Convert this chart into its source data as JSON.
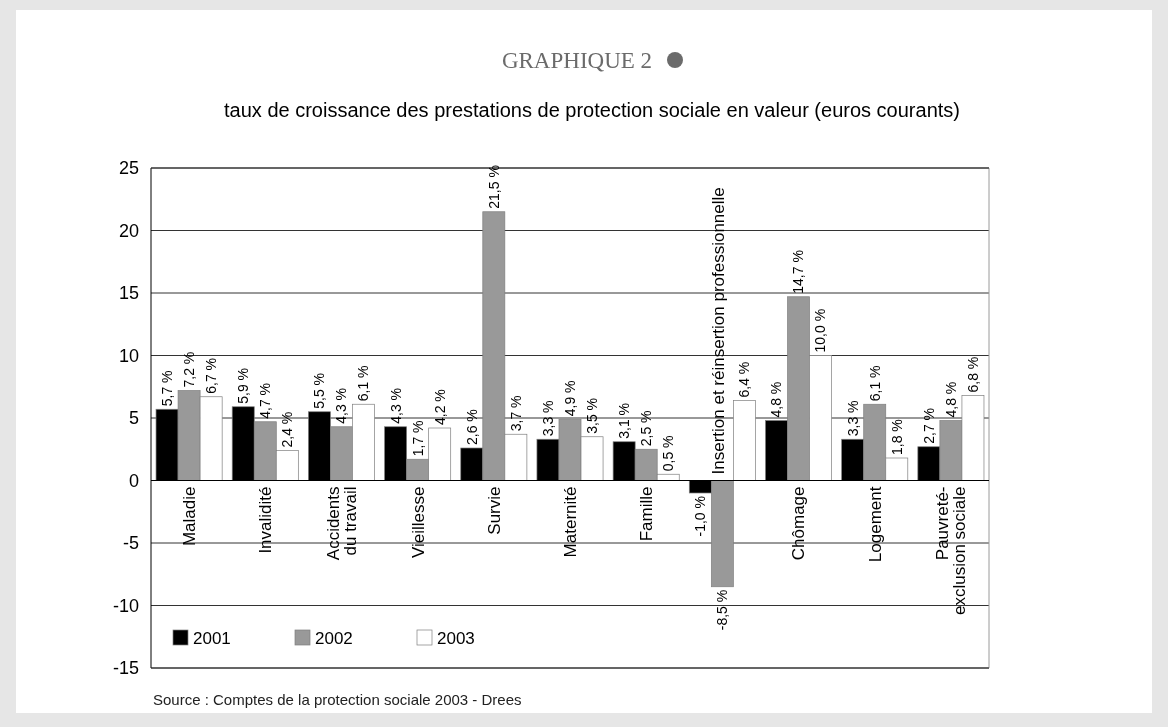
{
  "chart_data": {
    "type": "bar",
    "title": "GRAPHIQUE 2",
    "subtitle": "taux de croissance des prestations de protection sociale en valeur (euros courants)",
    "categories": [
      "Maladie",
      "Invalidité",
      "Accidents du travail",
      "Vieillesse",
      "Survie",
      "Maternité",
      "Famille",
      "Insertion et réinsertion professionnelle",
      "Chômage",
      "Logement",
      "Pauvreté-exclusion sociale"
    ],
    "series": [
      {
        "name": "2001",
        "color": "#000000",
        "values": [
          5.7,
          5.9,
          5.5,
          4.3,
          2.6,
          3.3,
          3.1,
          -1.0,
          4.8,
          3.3,
          2.7
        ],
        "value_labels": [
          "5,7 %",
          "5,9 %",
          "5,5 %",
          "4,3 %",
          "2,6 %",
          "3,3 %",
          "3,1 %",
          "-1,0 %",
          "4,8 %",
          "3,3 %",
          "2,7 %"
        ]
      },
      {
        "name": "2002",
        "color": "#999999",
        "values": [
          7.2,
          4.7,
          4.3,
          1.7,
          21.5,
          4.9,
          2.5,
          -8.5,
          14.7,
          6.1,
          4.8
        ],
        "value_labels": [
          "7,2 %",
          "4,7 %",
          "4,3 %",
          "1,7 %",
          "21,5 %",
          "4,9 %",
          "2,5 %",
          "-8,5 %",
          "14,7 %",
          "6,1 %",
          "4,8 %"
        ]
      },
      {
        "name": "2003",
        "color": "#ffffff",
        "values": [
          6.7,
          2.4,
          6.1,
          4.2,
          3.7,
          3.5,
          0.5,
          6.4,
          10.0,
          1.8,
          6.8
        ],
        "value_labels": [
          "6,7 %",
          "2,4 %",
          "6,1 %",
          "4,2 %",
          "3,7 %",
          "3,5 %",
          "0,5 %",
          "6,4 %",
          "10,0 %",
          "1,8 %",
          "6,8 %"
        ]
      }
    ],
    "ylim": [
      -15,
      25
    ],
    "yticks": [
      -15,
      -10,
      -5,
      0,
      5,
      10,
      15,
      20,
      25
    ],
    "grid": "y",
    "legend": "bottom left",
    "annotations": [
      "Source : Comptes de la protection sociale 2003 - Drees"
    ]
  }
}
